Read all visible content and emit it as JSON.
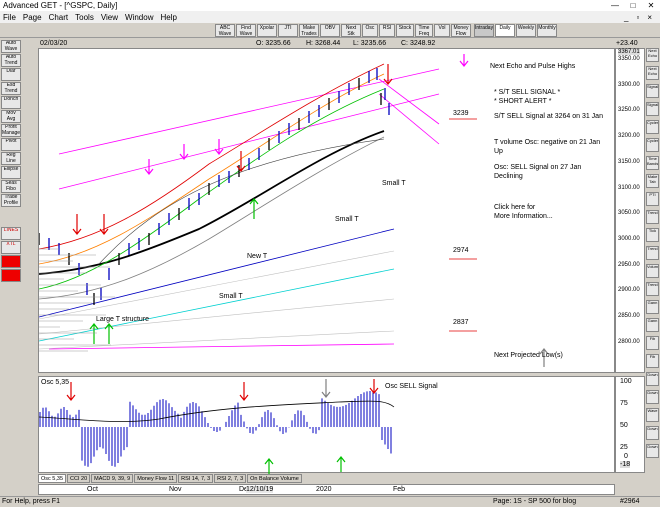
{
  "window": {
    "title": "Advanced GET - [^GSPC, Daily]",
    "ctrl_min": "—",
    "ctrl_max": "□",
    "ctrl_close": "✕"
  },
  "menu": [
    "File",
    "Page",
    "Chart",
    "Tools",
    "View",
    "Window",
    "Help"
  ],
  "menu_ctrls": [
    "_",
    "▫",
    "×"
  ],
  "toolbar": [
    "ABC Wave",
    "Find Wave",
    "Xpolar",
    "JTI",
    "Make Trades",
    "OBV",
    "Next Stk",
    "Osc",
    "RSI",
    "Stock",
    "Time Freq",
    "Vol",
    "Money Flow",
    "Intraday",
    "Daily",
    "Weekly",
    "Monthly"
  ],
  "info": {
    "date": "02/03/20",
    "open": "O: 3235.66",
    "high": "H: 3268.44",
    "low": "L: 3235.66",
    "close": "C: 3248.92",
    "change": "+23.40"
  },
  "left_toolbar": [
    "Auto Wave",
    "Auto Trend",
    "Diar",
    "Esd Trend",
    "Donch",
    "Mov Avg",
    "Profit Manager",
    "Pivot",
    "Reg Line",
    "Ellipse",
    "Seas Fibo",
    "Trade Profile"
  ],
  "left_small": [
    "LINES",
    "XTL"
  ],
  "right_toolbar": [
    "Next Echo",
    "Next Echo",
    "Signal",
    "Signal",
    "Cycles",
    "Cycles",
    "Time Bands",
    "Make Tab",
    "PTI",
    "Trend",
    "Tick",
    "Trend",
    "Volume",
    "Trend",
    "Gann",
    "Gann",
    "Fib",
    "Fib",
    "Down",
    "Down",
    "Wave",
    "Down",
    "Down"
  ],
  "price_axis": [
    "3367.01",
    "3350.00",
    "3300.00",
    "3250.00",
    "3200.00",
    "3150.00",
    "3100.00",
    "3050.00",
    "3000.00",
    "2950.00",
    "2900.00",
    "2850.00",
    "2800.00"
  ],
  "annotations": {
    "next_echo": "Next Echo and Pulse Highs",
    "st_sell": "* S/T SELL SIGNAL *",
    "short_alert": "* SHORT ALERT *",
    "st_sell_detail": "S/T SELL Signal at 3264 on 31 Jan",
    "tvol": "T volume Osc: negative on 21 Jan",
    "tvol2": "Up",
    "osc_sell": "Osc: SELL Signal on 27 Jan",
    "osc_sell2": "Declining",
    "click_here": "Click here for",
    "more_info": "More Information...",
    "next_low": "Next Projected Low(s)",
    "lvl_3239": "3239",
    "lvl_2974": "2974",
    "lvl_2837": "2837",
    "small_t_1": "Small T",
    "small_t_2": "Small T",
    "small_t_3": "Small T",
    "new_t": "New T",
    "large_t": "Large T structure"
  },
  "osc": {
    "label": "Osc 5,35",
    "signal": "Osc SELL Signal",
    "axis": [
      "100",
      "75",
      "50",
      "25",
      "0",
      "-18"
    ],
    "value": "-18"
  },
  "tabs": [
    "Osc 5,35",
    "CCI 20",
    "MACD 9, 39, 9",
    "Money Flow 11",
    "RSI 14, 7, 3",
    "RSI 2, 7, 3",
    "On Balance Volume"
  ],
  "dates": [
    "Oct",
    "Nov",
    "Dec",
    "12/10/19",
    "2020",
    "Feb"
  ],
  "status": {
    "help": "For Help, press F1",
    "page": "Page: 1S - SP 500 for blog",
    "id": "#2964"
  },
  "colors": {
    "red": "#e00000",
    "green": "#00c000",
    "pink": "#ff00ff",
    "blue": "#0000c0",
    "cyan": "#00d0d0",
    "orange": "#ff8000"
  }
}
